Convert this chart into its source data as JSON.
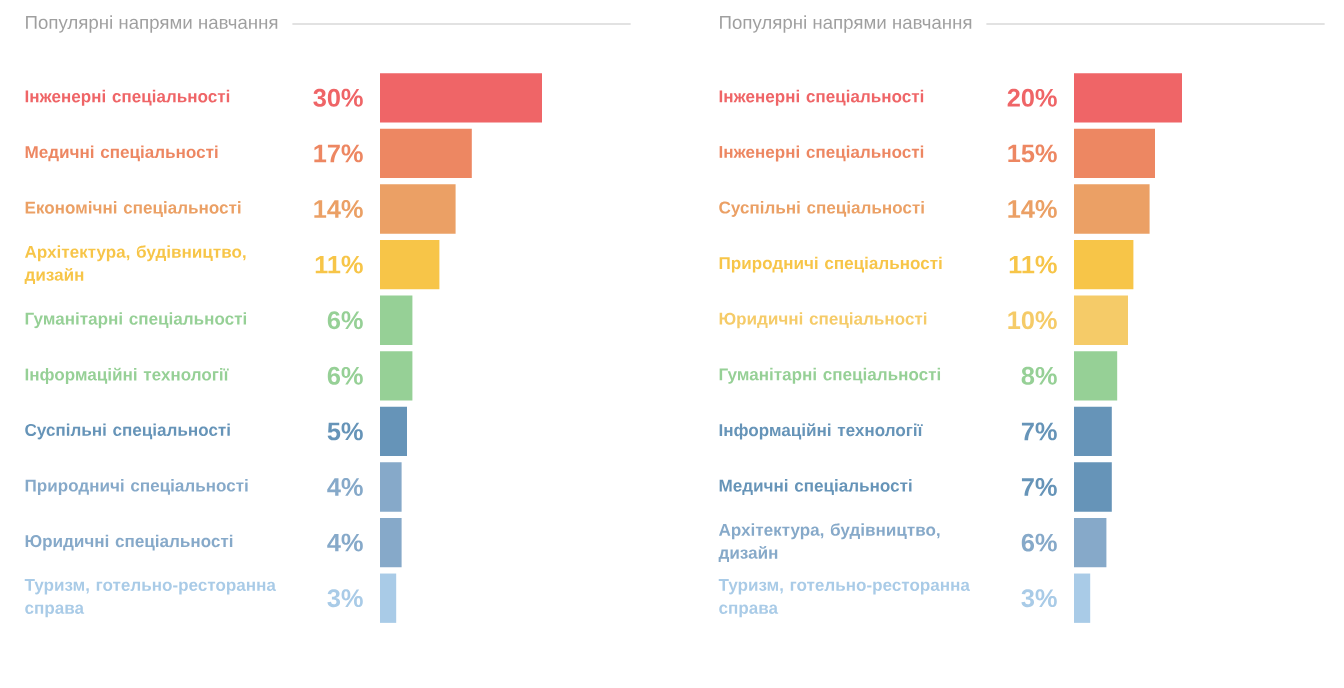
{
  "chart_data": [
    {
      "type": "bar",
      "orientation": "horizontal",
      "title": "Популярні напрями навчання",
      "categories": [
        "Інженерні спеціальності",
        "Медичні спеціальності",
        "Економічні спеціальності",
        "Архітектура, будівництво, дизайн",
        "Гуманітарні спеціальності",
        "Інформаційні технології",
        "Суспільні спеціальності",
        "Природничі спеціальності",
        "Юридичні спеціальності",
        "Туризм, готельно-ресторанна справа"
      ],
      "values": [
        30,
        17,
        14,
        11,
        6,
        6,
        5,
        4,
        4,
        3
      ],
      "value_labels": [
        "30%",
        "17%",
        "14%",
        "11%",
        "6%",
        "6%",
        "5%",
        "4%",
        "4%",
        "3%"
      ],
      "colors": [
        "#ef6567",
        "#ed8762",
        "#eba065",
        "#f7c548",
        "#96d096",
        "#96d096",
        "#6694b8",
        "#86a9c9",
        "#86a9c9",
        "#a9cbe7"
      ]
    },
    {
      "type": "bar",
      "orientation": "horizontal",
      "title": "Популярні напрями навчання",
      "categories": [
        "Інженерні спеціальності",
        "Інженерні спеціальності",
        "Суспільні спеціальності",
        "Природничі спеціальності",
        "Юридичні спеціальності",
        "Гуманітарні спеціальності",
        "Інформаційні технології",
        "Медичні спеціальності",
        "Архітектура, будівництво, дизайн",
        "Туризм, готельно-ресторанна справа"
      ],
      "values": [
        20,
        15,
        14,
        11,
        10,
        8,
        7,
        7,
        6,
        3
      ],
      "value_labels": [
        "20%",
        "15%",
        "14%",
        "11%",
        "10%",
        "8%",
        "7%",
        "7%",
        "6%",
        "3%"
      ],
      "colors": [
        "#ef6567",
        "#ed8762",
        "#eba065",
        "#f7c548",
        "#f5cb68",
        "#96d096",
        "#6694b8",
        "#6694b8",
        "#86a9c9",
        "#a9cbe7"
      ]
    }
  ]
}
